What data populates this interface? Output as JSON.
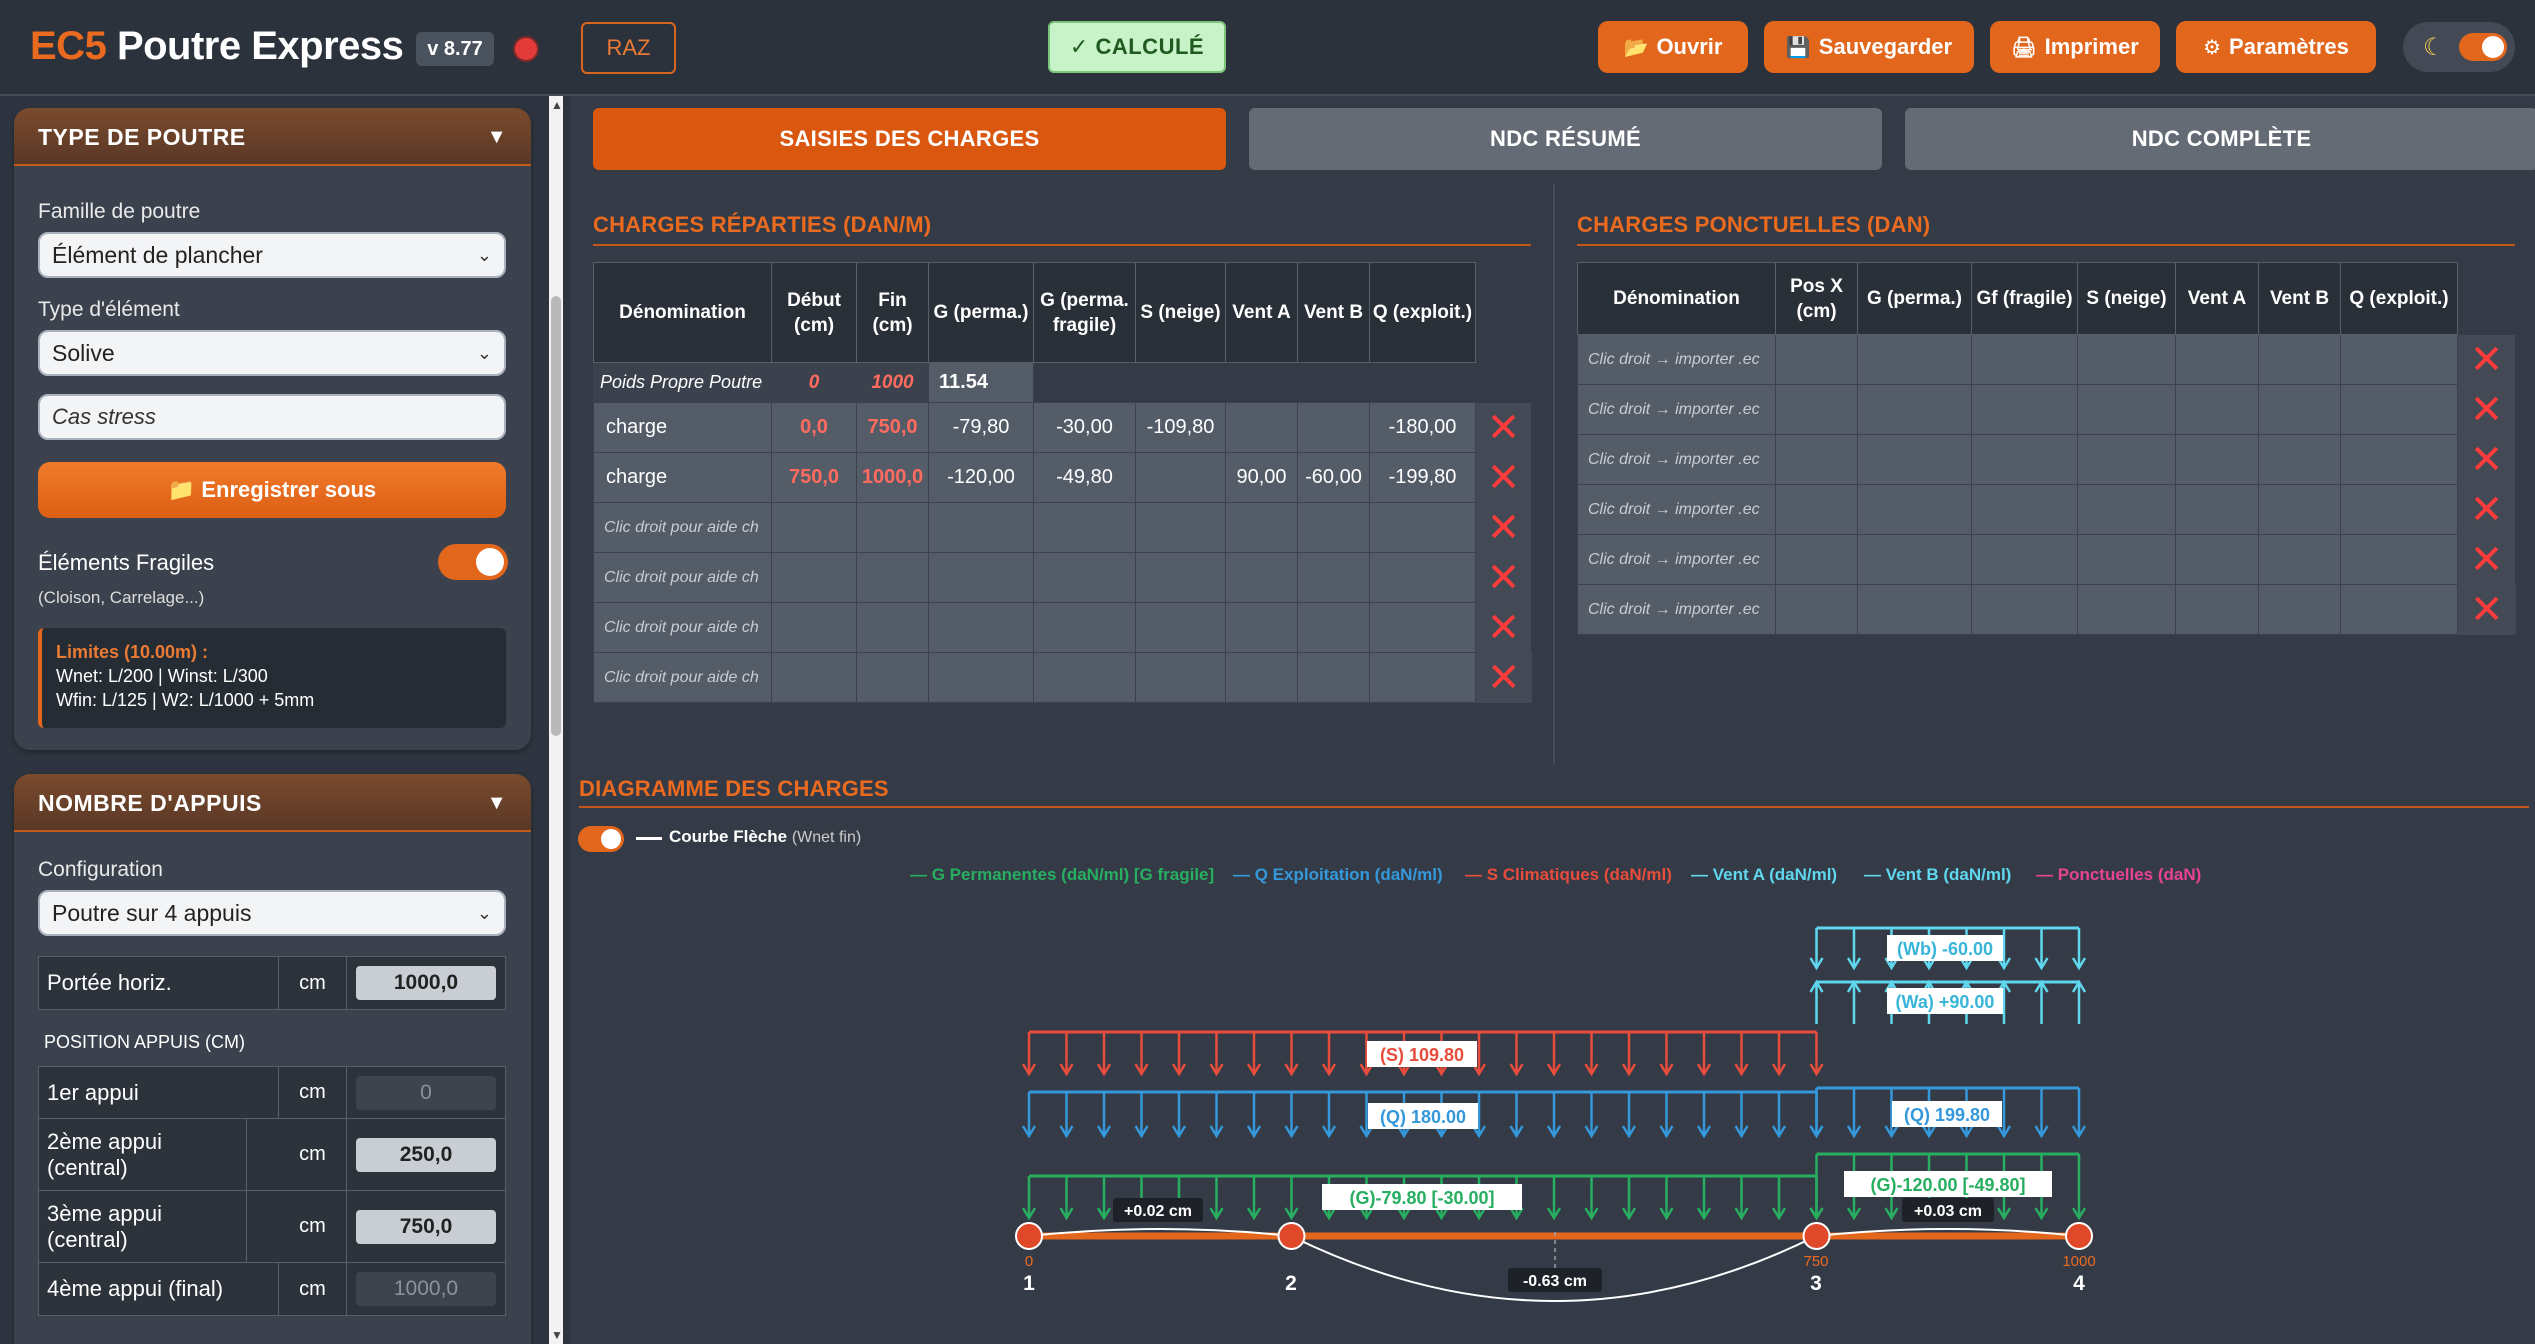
{
  "header": {
    "logo_ec5": "EC5",
    "logo_name": "Poutre Express",
    "version": "v 8.77",
    "raz_label": "RAZ",
    "calc_label": "✓ CALCULÉ",
    "buttons": [
      {
        "icon": "folder-icon",
        "label": "Ouvrir"
      },
      {
        "icon": "floppy-icon",
        "label": "Sauvegarder"
      },
      {
        "icon": "printer-icon",
        "label": "Imprimer"
      },
      {
        "icon": "gear-icon",
        "label": "Paramètres"
      }
    ],
    "theme_icon": "moon-icon"
  },
  "sidebar": {
    "type_panel": {
      "title": "TYPE DE POUTRE",
      "family_label": "Famille de poutre",
      "family_value": "Élément de plancher",
      "element_label": "Type d'élément",
      "element_value": "Solive",
      "case_name": "Cas stress",
      "save_button": "Enregistrer sous",
      "fragile_label": "Éléments Fragiles",
      "fragile_sub": "(Cloison, Carrelage...)",
      "limits_title": "Limites (10.00m) :",
      "limits_line1": "Wnet: L/200 | Winst: L/300",
      "limits_line2": "Wfin: L/125 | W2: L/1000 + 5mm"
    },
    "supports_panel": {
      "title": "NOMBRE D'APPUIS",
      "config_label": "Configuration",
      "config_value": "Poutre sur 4 appuis",
      "span": {
        "label": "Portée horiz.",
        "unit": "cm",
        "value": "1000,0"
      },
      "positions_title": "POSITION APPUIS (CM)",
      "positions": [
        {
          "label": "1er appui",
          "unit": "cm",
          "value": "0"
        },
        {
          "label": "2ème appui (central)",
          "unit": "cm",
          "value": "250,0"
        },
        {
          "label": "3ème appui (central)",
          "unit": "cm",
          "value": "750,0"
        },
        {
          "label": "4ème appui (final)",
          "unit": "cm",
          "value": "1000,0"
        }
      ]
    }
  },
  "tabs": [
    {
      "label": "SAISIES DES CHARGES",
      "active": true
    },
    {
      "label": "NDC RÉSUMÉ",
      "active": false
    },
    {
      "label": "NDC COMPLÈTE",
      "active": false
    }
  ],
  "distributed": {
    "title": "CHARGES RÉPARTIES (DAN/M)",
    "headers": [
      "Dénomination",
      "Début (cm)",
      "Fin (cm)",
      "G (perma.)",
      "G (perma. fragile)",
      "S (neige)",
      "Vent A",
      "Vent B",
      "Q (exploit.)"
    ],
    "self_weight": {
      "name": "Poids Propre Poutre",
      "start": "0",
      "end": "1000",
      "g": "11.54"
    },
    "rows": [
      {
        "name": "charge",
        "start": "0,0",
        "end": "750,0",
        "g": "-79,80",
        "gf": "-30,00",
        "s": "-109,80",
        "va": "",
        "vb": "",
        "q": "-180,00"
      },
      {
        "name": "charge",
        "start": "750,0",
        "end": "1000,0",
        "g": "-120,00",
        "gf": "-49,80",
        "s": "",
        "va": "90,00",
        "vb": "-60,00",
        "q": "-199,80"
      }
    ],
    "empty_hint": "Clic droit pour aide ch",
    "empty_rows": 4
  },
  "point": {
    "title": "CHARGES PONCTUELLES (DAN)",
    "headers": [
      "Dénomination",
      "Pos X (cm)",
      "G (perma.)",
      "Gf (fragile)",
      "S (neige)",
      "Vent A",
      "Vent B",
      "Q (exploit.)"
    ],
    "empty_hint": "Clic droit → importer .ec",
    "empty_rows": 6
  },
  "diagram": {
    "title": "DIAGRAMME DES CHARGES",
    "toggle_label": "Courbe Flèche",
    "toggle_sub": "(Wnet fin)",
    "legend": [
      {
        "label": "— G Permanentes (daN/ml) [G fragile]",
        "color": "#27ae60"
      },
      {
        "label": "— Q Exploitation (daN/ml)",
        "color": "#3498db"
      },
      {
        "label": "— S Climatiques (daN/ml)",
        "color": "#e74c3c"
      },
      {
        "label": "— Vent A (daN/ml)",
        "color": "#5fd7ee"
      },
      {
        "label": "— Vent B (daN/ml)",
        "color": "#5fd7ee"
      },
      {
        "label": "— Ponctuelles (daN)",
        "color": "#e84393"
      }
    ],
    "colors": {
      "g": "#27ae60",
      "q": "#3498db",
      "s": "#e74c3c",
      "wind": "#5fd7ee",
      "beam": "#e2661c"
    },
    "labels": {
      "wb": "(Wb) -60.00",
      "wa": "(Wa) +90.00",
      "s": "(S) 109.80",
      "q1": "(Q) 180.00",
      "q2": "(Q) 199.80",
      "g1": "(G)-79.80 [-30.00]",
      "g2": "(G)-120.00 [-49.80]",
      "d1": "+0.02 cm",
      "d2": "-0.63 cm",
      "d3": "+0.03 cm"
    },
    "positions": [
      "0",
      "750",
      "1000"
    ],
    "supports": [
      "1",
      "2",
      "3",
      "4"
    ]
  }
}
